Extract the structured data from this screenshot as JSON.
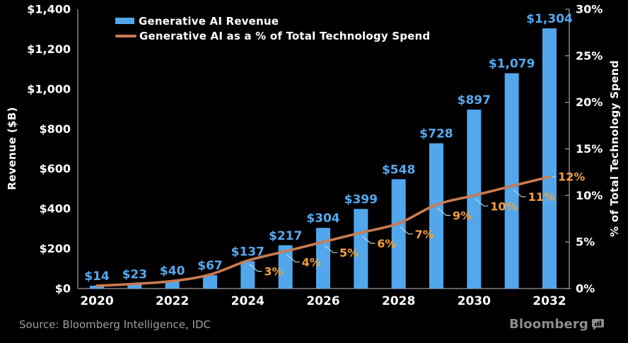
{
  "chart_data": {
    "type": "combo",
    "categories": [
      "2020",
      "2021",
      "2022",
      "2023",
      "2024",
      "2025",
      "2026",
      "2027",
      "2028",
      "2029",
      "2030",
      "2031",
      "2032"
    ],
    "series": [
      {
        "name": "Generative AI Revenue",
        "type": "bar",
        "color": "#52A7EC",
        "label_color": "#55A9EE",
        "values": [
          14,
          23,
          40,
          67,
          137,
          217,
          304,
          399,
          548,
          728,
          897,
          1079,
          1304
        ],
        "labels": [
          "$14",
          "$23",
          "$40",
          "$67",
          "$137",
          "$217",
          "$304",
          "$399",
          "$548",
          "$728",
          "$897",
          "$1,079",
          "$1,304"
        ]
      },
      {
        "name": "Generative AI as a % of Total Technology Spend",
        "type": "line",
        "color": "#C97B50",
        "label_color": "#F4A03B",
        "values": [
          0.3,
          0.5,
          0.8,
          1.5,
          3,
          4,
          5,
          6,
          7,
          9,
          10,
          11,
          12
        ],
        "labels": [
          null,
          null,
          null,
          null,
          "3%",
          "4%",
          "5%",
          "6%",
          "7%",
          "9%",
          "10%",
          "11%",
          "12%"
        ]
      }
    ],
    "left_axis": {
      "title": "Revenue ($B)",
      "min": 0,
      "max": 1400,
      "tick_labels": [
        "$0",
        "$200",
        "$400",
        "$600",
        "$800",
        "$1,000",
        "$1,200",
        "$1,400"
      ]
    },
    "right_axis": {
      "title": "% of Total Technology Spend",
      "min": 0,
      "max": 30,
      "tick_labels": [
        "0%",
        "5%",
        "10%",
        "15%",
        "20%",
        "25%",
        "30%"
      ]
    },
    "x_axis": {
      "tick_labels": [
        "2020",
        "2022",
        "2024",
        "2026",
        "2028",
        "2030",
        "2032"
      ]
    },
    "legend_position": "top",
    "grid": "off"
  },
  "footer": {
    "source": "Source: Bloomberg Intelligence, IDC",
    "brand": "Bloomberg",
    "brand_icon": "chart-speech-bubble-icon"
  },
  "colors": {
    "background": "#000000",
    "axis": "#9B9B9B",
    "tick_text": "#FFFFFF",
    "callout": "#C3D3E2",
    "source_text": "#9E9E9E",
    "brand_text": "#8D8D8D"
  }
}
